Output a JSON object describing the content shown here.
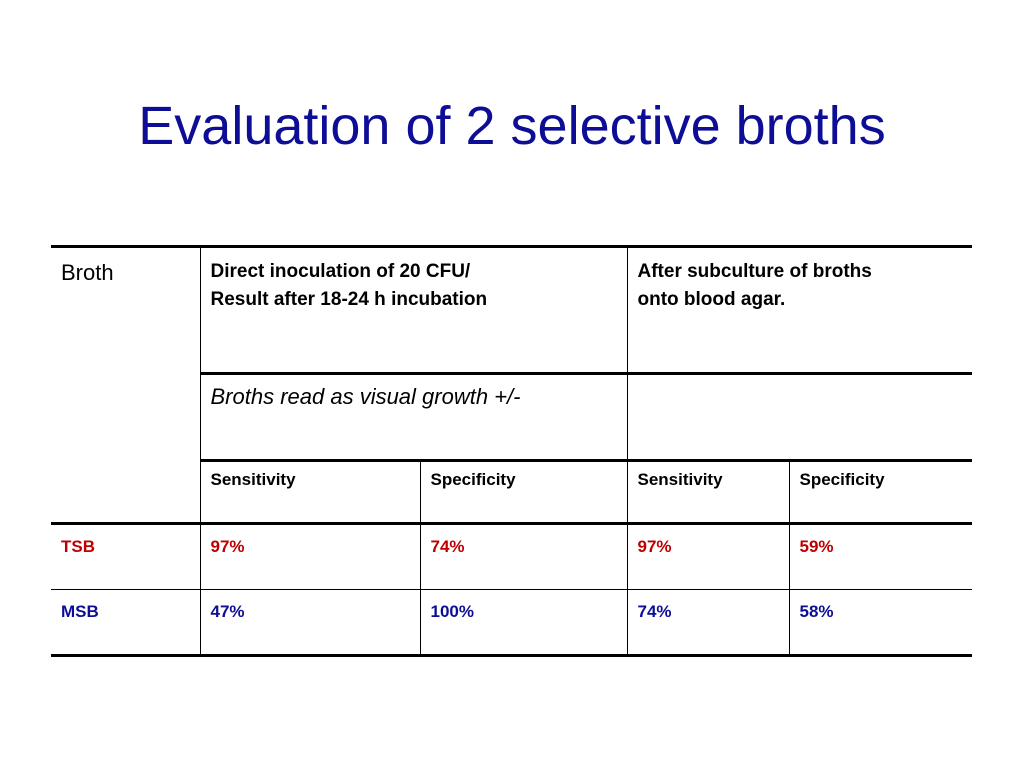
{
  "slide": {
    "title": "Evaluation of 2 selective broths"
  },
  "table": {
    "broth_header": "Broth",
    "col_direct": "Direct inoculation of 20 CFU/\nResult after 18-24 h incubation",
    "col_direct_line1": "Direct inoculation of 20 CFU/",
    "col_direct_line2": "Result after 18-24 h incubation",
    "col_subculture_line1": "After subculture of broths",
    "col_subculture_line2": "onto blood agar.",
    "visual_note": "Broths read as visual growth +/-",
    "metrics": [
      "Sensitivity",
      "Specificity",
      "Sensitivity",
      "Specificity"
    ],
    "rows": [
      {
        "broth": "TSB",
        "values": [
          "97%",
          "74%",
          "97%",
          "59%"
        ],
        "color": "#c00000"
      },
      {
        "broth": "MSB",
        "values": [
          "47%",
          "100%",
          "74%",
          "58%"
        ],
        "color": "#0d0d96"
      }
    ]
  },
  "colors": {
    "title": "#0d0d96",
    "tsb_row": "#c00000",
    "msb_row": "#0d0d96"
  }
}
